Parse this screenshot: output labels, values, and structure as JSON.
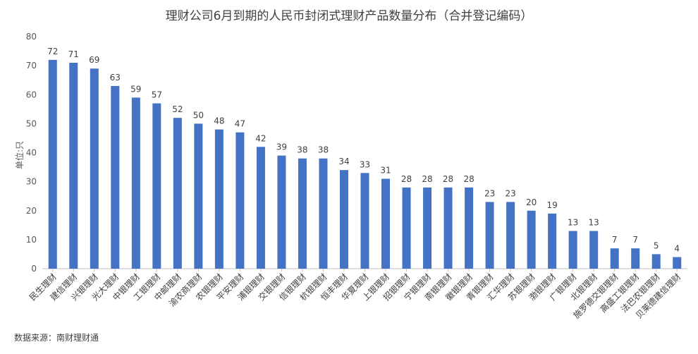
{
  "chart_data": {
    "type": "bar",
    "title": "理财公司6月到期的人民币封闭式理财产品数量分布（合并登记编码）",
    "ylabel": "单位:只",
    "xlabel": "",
    "ylim": [
      0,
      80
    ],
    "yticks": [
      0,
      10,
      20,
      30,
      40,
      50,
      60,
      70,
      80
    ],
    "grid": false,
    "legend": "none",
    "bar_color": "#4472C4",
    "categories": [
      "民生理财",
      "建信理财",
      "兴银理财",
      "光大理财",
      "中银理财",
      "工银理财",
      "中邮理财",
      "渝农商理财",
      "农银理财",
      "平安理财",
      "浦银理财",
      "交银理财",
      "信银理财",
      "杭银理财",
      "恒丰理财",
      "华夏理财",
      "上银理财",
      "招银理财",
      "宁银理财",
      "南银理财",
      "徽银理财",
      "青银理财",
      "汇华理财",
      "苏银理财",
      "渤银理财",
      "广银理财",
      "北银理财",
      "施罗德交银理财",
      "高盛工银理财",
      "法巴农银理财",
      "贝莱德建信理财"
    ],
    "values": [
      72,
      71,
      69,
      63,
      59,
      57,
      52,
      50,
      48,
      47,
      42,
      39,
      38,
      38,
      34,
      33,
      31,
      28,
      28,
      28,
      28,
      23,
      23,
      20,
      19,
      13,
      13,
      7,
      7,
      5,
      4
    ]
  },
  "source": "数据来源：南财理财通"
}
